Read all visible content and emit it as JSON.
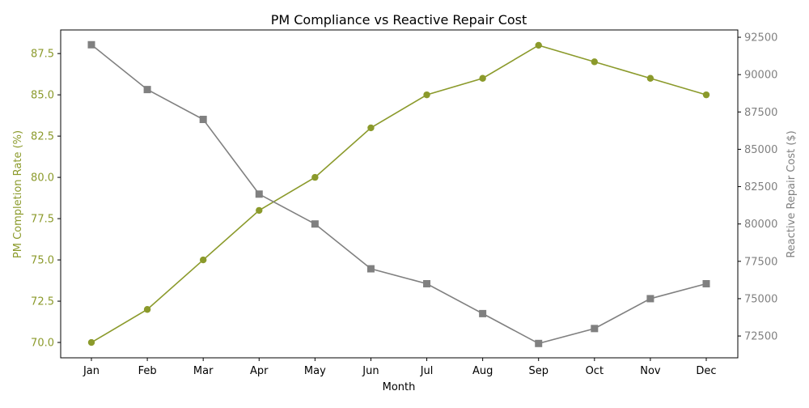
{
  "chart_data": {
    "type": "line",
    "title": "PM Compliance vs Reactive Repair Cost",
    "xlabel": "Month",
    "categories": [
      "Jan",
      "Feb",
      "Mar",
      "Apr",
      "May",
      "Jun",
      "Jul",
      "Aug",
      "Sep",
      "Oct",
      "Nov",
      "Dec"
    ],
    "grid": false,
    "series": [
      {
        "axis": "left",
        "color": "#8b9a2b",
        "marker": "circle",
        "values": [
          70,
          72,
          75,
          78,
          80,
          83,
          85,
          86,
          88,
          87,
          86,
          85
        ]
      },
      {
        "axis": "right",
        "color": "#808080",
        "marker": "square",
        "values": [
          92000,
          89000,
          87000,
          82000,
          80000,
          77000,
          76000,
          74000,
          72000,
          73000,
          75000,
          76000
        ]
      }
    ],
    "y_left": {
      "label": "PM Completion Rate (%)",
      "color": "#8b9a2b",
      "ylim": [
        69.07,
        88.93
      ],
      "ticks": [
        "70.0",
        "72.5",
        "75.0",
        "77.5",
        "80.0",
        "82.5",
        "85.0",
        "87.5"
      ]
    },
    "y_right": {
      "label": "Reactive Repair Cost ($)",
      "color": "#808080",
      "ylim": [
        71040,
        92990
      ],
      "ticks": [
        "72500",
        "75000",
        "77500",
        "80000",
        "82500",
        "85000",
        "87500",
        "90000",
        "92500"
      ]
    }
  }
}
